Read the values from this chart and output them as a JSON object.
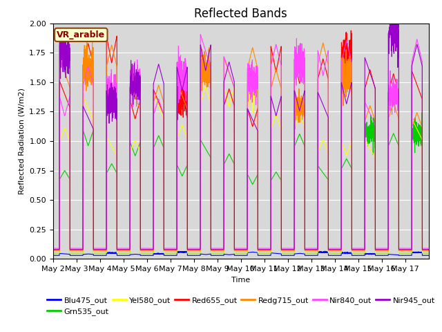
{
  "title": "Reflected Bands",
  "xlabel": "Time",
  "ylabel": "Reflected Radiation (W/m2)",
  "ylim": [
    0,
    2.0
  ],
  "annotation": "VR_arable",
  "legend_entries": [
    "Blu475_out",
    "Grn535_out",
    "Yel580_out",
    "Red655_out",
    "Redg715_out",
    "Nir840_out",
    "Nir945_out"
  ],
  "legend_colors": [
    "#0000ff",
    "#00cc00",
    "#ffff00",
    "#ff0000",
    "#ff8800",
    "#ff44ff",
    "#9900cc"
  ],
  "line_colors": {
    "Blu475_out": "#0000ff",
    "Grn535_out": "#00cc00",
    "Yel580_out": "#ffff00",
    "Red655_out": "#ff0000",
    "Redg715_out": "#ff8800",
    "Nir840_out": "#ff44ff",
    "Nir945_out": "#9900cc"
  },
  "xtick_labels": [
    "May 2",
    "May 3",
    "May 4",
    "May 5",
    "May 6",
    "May 7",
    "May 8",
    "May 9",
    "May 10",
    "May 11",
    "May 12",
    "May 13",
    "May 14",
    "May 15",
    "May 16",
    "May 17"
  ],
  "n_days": 16,
  "background_color": "#d8d8d8",
  "title_fontsize": 12,
  "label_fontsize": 8,
  "tick_fontsize": 8,
  "scales": {
    "Blu475_out": 0.06,
    "Grn535_out": 1.1,
    "Yel580_out": 1.5,
    "Red655_out": 1.95,
    "Redg715_out": 1.9,
    "Nir840_out": 1.95,
    "Nir945_out": 1.95
  },
  "night_values": {
    "Blu475_out": 0.03,
    "Grn535_out": 0.05,
    "Yel580_out": 0.05,
    "Red655_out": 0.08,
    "Redg715_out": 0.07,
    "Nir840_out": 0.09,
    "Nir945_out": 0.08
  }
}
